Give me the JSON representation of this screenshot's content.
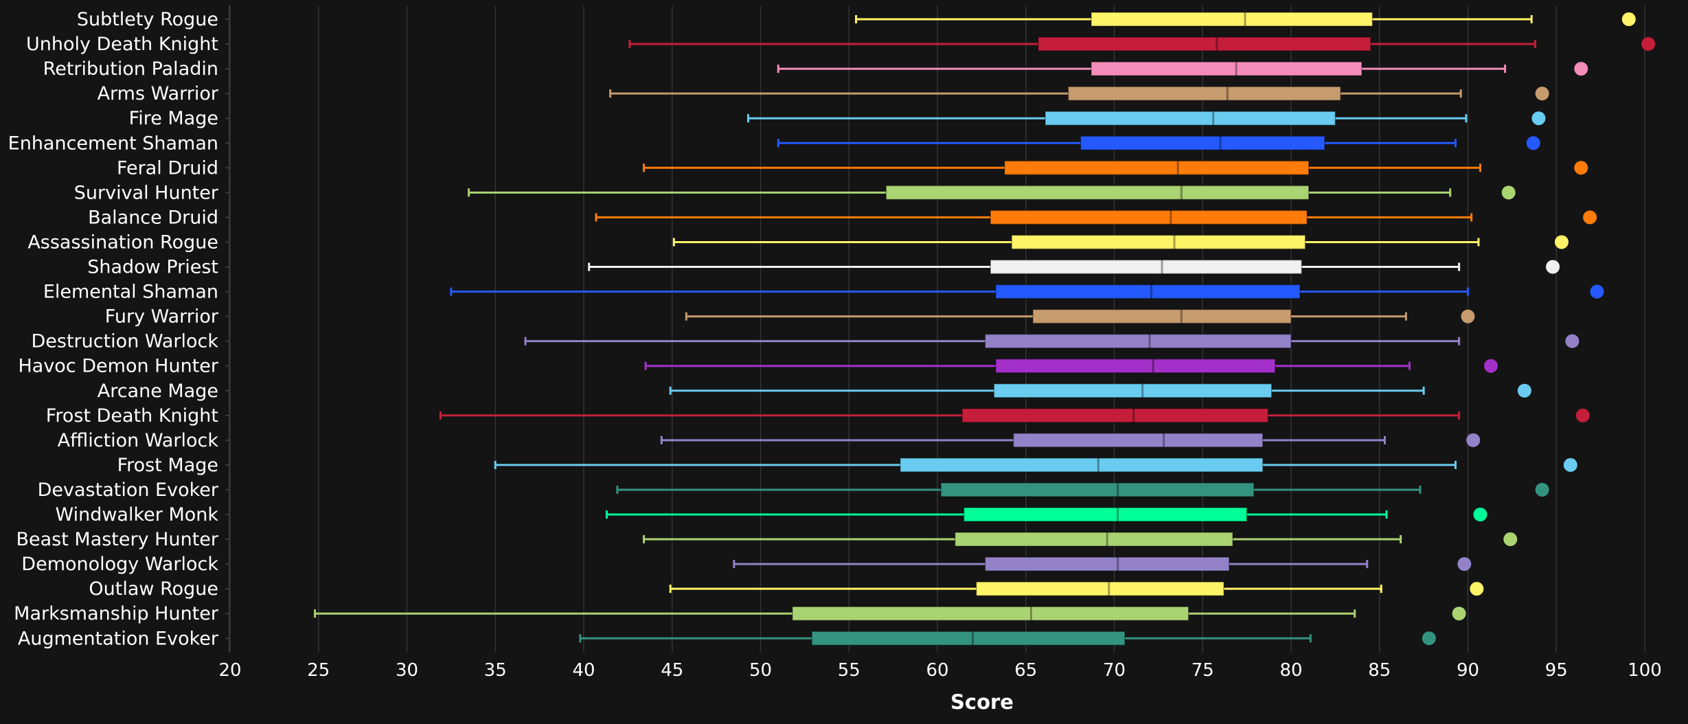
{
  "chart_data": {
    "type": "boxplot",
    "title": "",
    "xlabel": "Score",
    "ylabel": "",
    "xlim": [
      20,
      102
    ],
    "xticks": [
      20,
      25,
      30,
      35,
      40,
      45,
      50,
      55,
      60,
      65,
      70,
      75,
      80,
      85,
      90,
      95,
      100
    ],
    "grid": "vertical",
    "background": "#141414",
    "series": [
      {
        "category": "Subtlety Rogue",
        "color": "#fff468",
        "min": 55.4,
        "q1": 68.7,
        "median": 77.4,
        "q3": 84.6,
        "max": 93.6,
        "top": 99.1
      },
      {
        "category": "Unholy Death Knight",
        "color": "#c41e3a",
        "min": 42.6,
        "q1": 65.7,
        "median": 75.8,
        "q3": 84.5,
        "max": 93.8,
        "top": 100.2
      },
      {
        "category": "Retribution Paladin",
        "color": "#f48cba",
        "min": 51.0,
        "q1": 68.7,
        "median": 76.9,
        "q3": 84.0,
        "max": 92.1,
        "top": 96.4
      },
      {
        "category": "Arms Warrior",
        "color": "#c69b6d",
        "min": 41.5,
        "q1": 67.4,
        "median": 76.4,
        "q3": 82.8,
        "max": 89.6,
        "top": 94.2
      },
      {
        "category": "Fire Mage",
        "color": "#69ccf0",
        "min": 49.3,
        "q1": 66.1,
        "median": 75.6,
        "q3": 82.5,
        "max": 89.9,
        "top": 94.0
      },
      {
        "category": "Enhancement Shaman",
        "color": "#2459ff",
        "min": 51.0,
        "q1": 68.1,
        "median": 76.0,
        "q3": 81.9,
        "max": 89.3,
        "top": 93.7
      },
      {
        "category": "Feral Druid",
        "color": "#ff7c0a",
        "min": 43.4,
        "q1": 63.8,
        "median": 73.6,
        "q3": 81.0,
        "max": 90.7,
        "top": 96.4
      },
      {
        "category": "Survival Hunter",
        "color": "#aad372",
        "min": 33.5,
        "q1": 57.1,
        "median": 73.8,
        "q3": 81.0,
        "max": 89.0,
        "top": 92.3
      },
      {
        "category": "Balance Druid",
        "color": "#ff7c0a",
        "min": 40.7,
        "q1": 63.0,
        "median": 73.2,
        "q3": 80.9,
        "max": 90.2,
        "top": 96.9
      },
      {
        "category": "Assassination Rogue",
        "color": "#fff468",
        "min": 45.1,
        "q1": 64.2,
        "median": 73.4,
        "q3": 80.8,
        "max": 90.6,
        "top": 95.3
      },
      {
        "category": "Shadow Priest",
        "color": "#f0f0f0",
        "min": 40.3,
        "q1": 63.0,
        "median": 72.7,
        "q3": 80.6,
        "max": 89.5,
        "top": 94.8
      },
      {
        "category": "Elemental Shaman",
        "color": "#2459ff",
        "min": 32.5,
        "q1": 63.3,
        "median": 72.1,
        "q3": 80.5,
        "max": 90.0,
        "top": 97.3
      },
      {
        "category": "Fury Warrior",
        "color": "#c69b6d",
        "min": 45.8,
        "q1": 65.4,
        "median": 73.8,
        "q3": 80.0,
        "max": 86.5,
        "top": 90.0
      },
      {
        "category": "Destruction Warlock",
        "color": "#9482c9",
        "min": 36.7,
        "q1": 62.7,
        "median": 72.0,
        "q3": 80.0,
        "max": 89.5,
        "top": 95.9
      },
      {
        "category": "Havoc Demon Hunter",
        "color": "#a330c9",
        "min": 43.5,
        "q1": 63.3,
        "median": 72.2,
        "q3": 79.1,
        "max": 86.7,
        "top": 91.3
      },
      {
        "category": "Arcane Mage",
        "color": "#69ccf0",
        "min": 44.9,
        "q1": 63.2,
        "median": 71.6,
        "q3": 78.9,
        "max": 87.5,
        "top": 93.2
      },
      {
        "category": "Frost Death Knight",
        "color": "#c41e3a",
        "min": 31.9,
        "q1": 61.4,
        "median": 71.1,
        "q3": 78.7,
        "max": 89.5,
        "top": 96.5
      },
      {
        "category": "Affliction Warlock",
        "color": "#9482c9",
        "min": 44.4,
        "q1": 64.3,
        "median": 72.8,
        "q3": 78.4,
        "max": 85.3,
        "top": 90.3
      },
      {
        "category": "Frost Mage",
        "color": "#69ccf0",
        "min": 35.0,
        "q1": 57.9,
        "median": 69.1,
        "q3": 78.4,
        "max": 89.3,
        "top": 95.8
      },
      {
        "category": "Devastation Evoker",
        "color": "#33937f",
        "min": 41.9,
        "q1": 60.2,
        "median": 70.2,
        "q3": 77.9,
        "max": 87.3,
        "top": 94.2
      },
      {
        "category": "Windwalker Monk",
        "color": "#00ff98",
        "min": 41.3,
        "q1": 61.5,
        "median": 70.2,
        "q3": 77.5,
        "max": 85.4,
        "top": 90.7
      },
      {
        "category": "Beast Mastery Hunter",
        "color": "#aad372",
        "min": 43.4,
        "q1": 61.0,
        "median": 69.6,
        "q3": 76.7,
        "max": 86.2,
        "top": 92.4
      },
      {
        "category": "Demonology Warlock",
        "color": "#9482c9",
        "min": 48.5,
        "q1": 62.7,
        "median": 70.2,
        "q3": 76.5,
        "max": 84.3,
        "top": 89.8
      },
      {
        "category": "Outlaw Rogue",
        "color": "#fff468",
        "min": 44.9,
        "q1": 62.2,
        "median": 69.7,
        "q3": 76.2,
        "max": 85.1,
        "top": 90.5
      },
      {
        "category": "Marksmanship Hunter",
        "color": "#aad372",
        "min": 24.8,
        "q1": 51.8,
        "median": 65.3,
        "q3": 74.2,
        "max": 83.6,
        "top": 89.5
      },
      {
        "category": "Augmentation Evoker",
        "color": "#33937f",
        "min": 39.8,
        "q1": 52.9,
        "median": 62.0,
        "q3": 70.6,
        "max": 81.1,
        "top": 87.8
      }
    ]
  }
}
